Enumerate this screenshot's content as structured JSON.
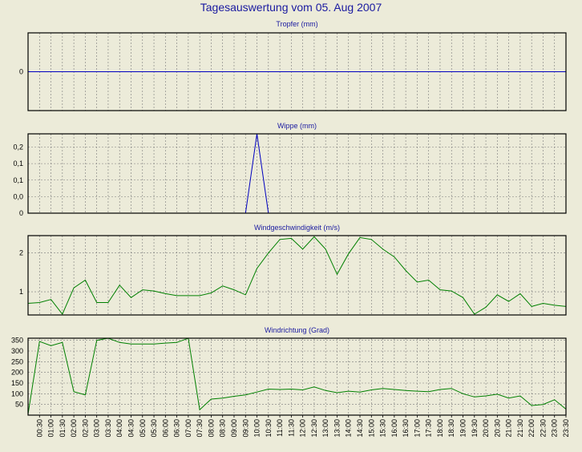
{
  "title": "Tagesauswertung vom 05. Aug 2007",
  "colors": {
    "background": "#ecebd9",
    "blue_line": "#0000c0",
    "green_line": "#008000",
    "title_blue": "#1a1aa0",
    "grid": "#7a7a7a"
  },
  "time_labels": [
    "00:30",
    "01:00",
    "01:30",
    "02:00",
    "02:30",
    "03:00",
    "03:30",
    "04:00",
    "04:30",
    "05:00",
    "05:30",
    "06:00",
    "06:30",
    "07:00",
    "07:30",
    "08:00",
    "08:30",
    "09:00",
    "09:30",
    "10:00",
    "10:30",
    "11:00",
    "11:30",
    "12:00",
    "12:30",
    "13:00",
    "13:30",
    "14:00",
    "14:30",
    "15:00",
    "15:30",
    "16:00",
    "16:30",
    "17:00",
    "17:30",
    "18:00",
    "18:30",
    "19:00",
    "19:30",
    "20:00",
    "20:30",
    "21:00",
    "21:30",
    "22:00",
    "22:30",
    "23:00",
    "23:30"
  ],
  "chart_data": [
    {
      "type": "line",
      "title": "Tropfer (mm)",
      "yticks": [
        {
          "label": "0",
          "value": 0
        }
      ],
      "ylim": [
        -1,
        1
      ],
      "grid": true,
      "series": [
        {
          "color": "#0000c0",
          "values": [
            0,
            0,
            0,
            0,
            0,
            0,
            0,
            0,
            0,
            0,
            0,
            0,
            0,
            0,
            0,
            0,
            0,
            0,
            0,
            0,
            0,
            0,
            0,
            0,
            0,
            0,
            0,
            0,
            0,
            0,
            0,
            0,
            0,
            0,
            0,
            0,
            0,
            0,
            0,
            0,
            0,
            0,
            0,
            0,
            0,
            0,
            0,
            0
          ]
        }
      ]
    },
    {
      "type": "line",
      "title": "Wippe (mm)",
      "yticks": [
        {
          "label": "0",
          "value": 0
        },
        {
          "label": "0,0",
          "value": 0.05
        },
        {
          "label": "0,1",
          "value": 0.1
        },
        {
          "label": "0,1",
          "value": 0.15
        },
        {
          "label": "0,2",
          "value": 0.2
        }
      ],
      "ylim": [
        0,
        0.24
      ],
      "grid": true,
      "series": [
        {
          "color": "#0000c0",
          "values": [
            0,
            0,
            0,
            0,
            0,
            0,
            0,
            0,
            0,
            0,
            0,
            0,
            0,
            0,
            0,
            0,
            0,
            0,
            0,
            0,
            0.24,
            0,
            0,
            0,
            0,
            0,
            0,
            0,
            0,
            0,
            0,
            0,
            0,
            0,
            0,
            0,
            0,
            0,
            0,
            0,
            0,
            0,
            0,
            0,
            0,
            0,
            0,
            0
          ]
        }
      ]
    },
    {
      "type": "line",
      "title": "Windgeschwindigkeit (m/s)",
      "yticks": [
        {
          "label": "1",
          "value": 1
        },
        {
          "label": "2",
          "value": 2
        }
      ],
      "ylim": [
        0.4,
        2.45
      ],
      "grid": true,
      "series": [
        {
          "color": "#008000",
          "values": [
            0.7,
            0.72,
            0.8,
            0.42,
            1.1,
            1.3,
            0.72,
            0.72,
            1.17,
            0.85,
            1.05,
            1.02,
            0.95,
            0.9,
            0.9,
            0.9,
            0.97,
            1.15,
            1.05,
            0.92,
            1.6,
            2.0,
            2.35,
            2.38,
            2.1,
            2.42,
            2.1,
            1.45,
            1.98,
            2.4,
            2.35,
            2.1,
            1.9,
            1.55,
            1.25,
            1.3,
            1.05,
            1.02,
            0.85,
            0.42,
            0.6,
            0.92,
            0.75,
            0.95,
            0.62,
            0.7,
            0.65,
            0.62
          ]
        }
      ]
    },
    {
      "type": "line",
      "title": "Windrichtung (Grad)",
      "yticks": [
        {
          "label": "50",
          "value": 50
        },
        {
          "label": "100",
          "value": 100
        },
        {
          "label": "150",
          "value": 150
        },
        {
          "label": "200",
          "value": 200
        },
        {
          "label": "250",
          "value": 250
        },
        {
          "label": "300",
          "value": 300
        },
        {
          "label": "350",
          "value": 350
        }
      ],
      "ylim": [
        0,
        360
      ],
      "grid": true,
      "series": [
        {
          "color": "#008000",
          "values": [
            5,
            345,
            325,
            340,
            110,
            95,
            350,
            360,
            340,
            333,
            333,
            333,
            337,
            340,
            360,
            25,
            75,
            80,
            88,
            95,
            108,
            122,
            120,
            122,
            118,
            132,
            115,
            105,
            112,
            108,
            118,
            125,
            120,
            115,
            112,
            110,
            120,
            125,
            100,
            85,
            90,
            98,
            80,
            90,
            45,
            50,
            72,
            28
          ]
        }
      ]
    }
  ]
}
